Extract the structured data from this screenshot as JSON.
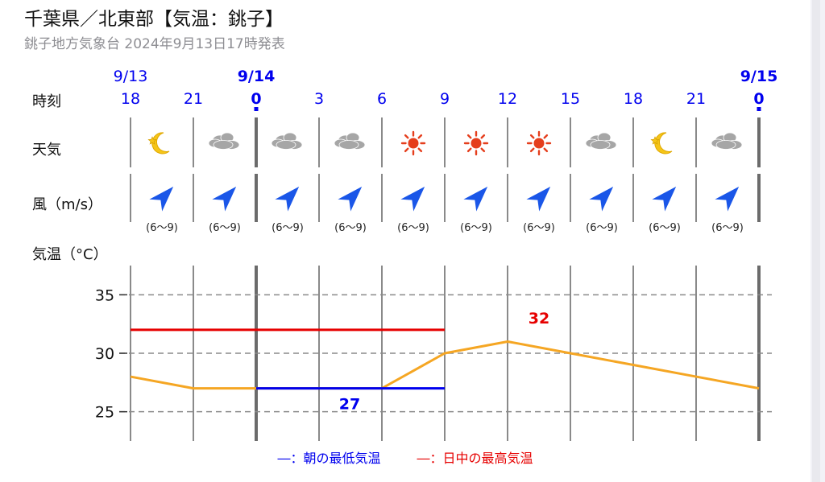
{
  "header": {
    "title": "千葉県／北東部【気温：銚子】",
    "subtitle": "銚子地方気象台 2024年9月13日17時発表"
  },
  "row_labels": {
    "time": "時刻",
    "weather": "天気",
    "wind": "風（m/s）",
    "temperature": "気温（°C）"
  },
  "dates": [
    {
      "label": "9/13",
      "col": 0,
      "bold": false
    },
    {
      "label": "9/14",
      "col": 2,
      "bold": true
    },
    {
      "label": "9/15",
      "col": 10,
      "bold": true
    }
  ],
  "hours": [
    {
      "label": "18",
      "bold": false
    },
    {
      "label": "21",
      "bold": false
    },
    {
      "label": "0",
      "bold": true
    },
    {
      "label": "3",
      "bold": false
    },
    {
      "label": "6",
      "bold": false
    },
    {
      "label": "9",
      "bold": false
    },
    {
      "label": "12",
      "bold": false
    },
    {
      "label": "15",
      "bold": false
    },
    {
      "label": "18",
      "bold": false
    },
    {
      "label": "21",
      "bold": false
    },
    {
      "label": "0",
      "bold": true
    }
  ],
  "weather_icons": [
    "moon-clear-icon",
    "cloud-icon",
    "cloud-icon",
    "cloud-icon",
    "sun-icon",
    "sun-icon",
    "sun-icon",
    "cloud-icon",
    "moon-clear-icon",
    "cloud-icon"
  ],
  "wind": {
    "direction_icon": "wind-arrow-northeast-icon",
    "speeds": [
      "(6〜9)",
      "(6〜9)",
      "(6〜9)",
      "(6〜9)",
      "(6〜9)",
      "(6〜9)",
      "(6〜9)",
      "(6〜9)",
      "(6〜9)",
      "(6〜9)"
    ]
  },
  "colors": {
    "date_blue": "#0000ee",
    "line": "#f5a623",
    "min_temp": "#0000ee",
    "max_temp": "#e60000",
    "icon_blue": "#1a56e8",
    "sun": "#e53e1c",
    "moon": "#f5c518",
    "cloud": "#a6a6a6"
  },
  "chart_data": {
    "type": "line",
    "x": [
      "18",
      "21",
      "0",
      "3",
      "6",
      "9",
      "12",
      "15",
      "18",
      "21",
      "0"
    ],
    "series": [
      {
        "values": [
          28,
          27,
          27,
          27,
          27,
          30,
          31,
          30,
          29,
          28,
          27
        ]
      }
    ],
    "ylim": [
      22.5,
      37.5
    ],
    "yticks": [
      25,
      30,
      35
    ],
    "grid": true,
    "annotations": [
      {
        "type": "segment",
        "label": "27",
        "y": 27,
        "from": "0",
        "to": "9",
        "meaning": "min"
      },
      {
        "type": "segment",
        "label": "32",
        "y": 32,
        "from": "9",
        "to": "18",
        "meaning": "max"
      }
    ]
  },
  "legend": {
    "min_label": "―：朝の最低気温",
    "max_label": "―：日中の最高気温"
  }
}
